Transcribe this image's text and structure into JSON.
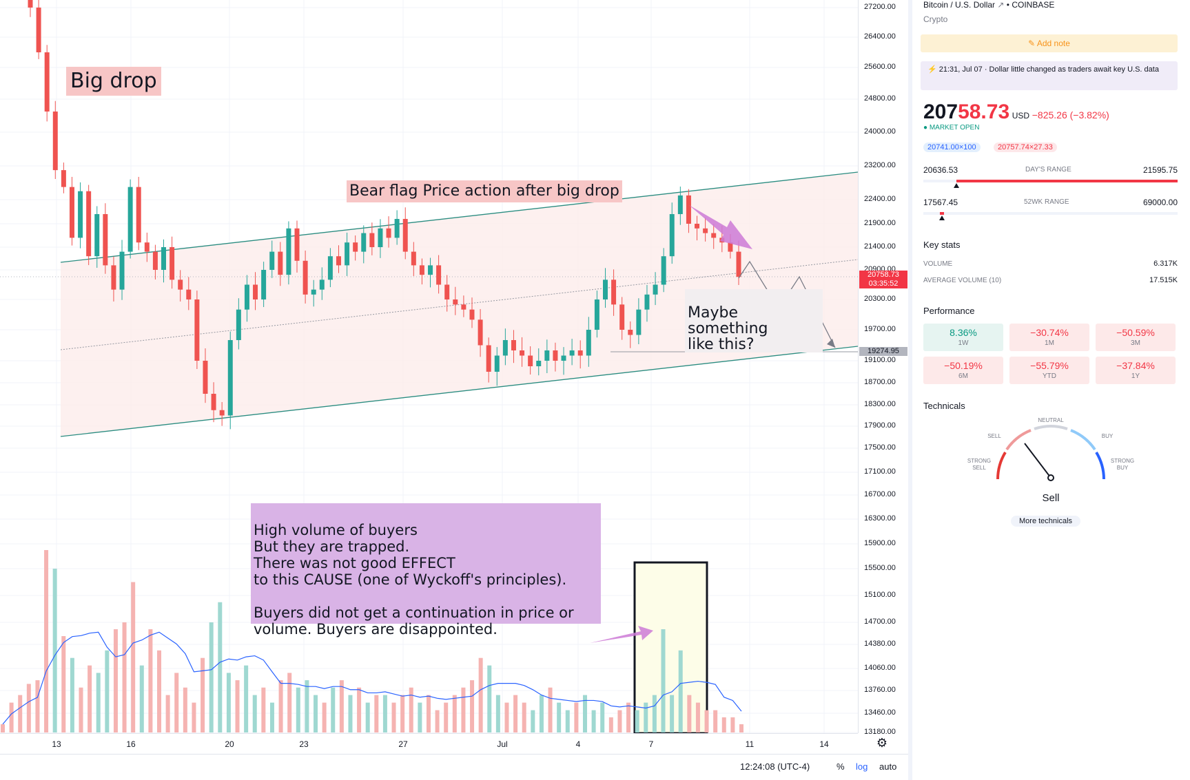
{
  "chart_data": {
    "type": "candlestick",
    "symbol": "Bitcoin / U.S. Dollar",
    "exchange": "COINBASE",
    "y_ticks": [
      27200,
      26400,
      25600,
      24800,
      24000,
      23200,
      22400,
      21900,
      21400,
      20900,
      20300,
      19700,
      19100,
      18700,
      18300,
      17900,
      17500,
      17100,
      16700,
      16300,
      15900,
      15500,
      15100,
      14700,
      14380,
      14060,
      13760,
      13460,
      13180
    ],
    "y_tick_labels": [
      "27200.00",
      "26400.00",
      "25600.00",
      "24800.00",
      "24000.00",
      "23200.00",
      "22400.00",
      "21900.00",
      "21400.00",
      "20900.00",
      "20300.00",
      "19700.00",
      "19100.00",
      "18700.00",
      "18300.00",
      "17900.00",
      "17500.00",
      "17100.00",
      "16700.00",
      "16300.00",
      "15900.00",
      "15500.00",
      "15100.00",
      "14700.00",
      "14380.00",
      "14060.00",
      "13760.00",
      "13460.00",
      "13180.00"
    ],
    "x_ticks": [
      "13",
      "16",
      "20",
      "23",
      "27",
      "Jul",
      "4",
      "7",
      "11",
      "14"
    ],
    "last_price_tag": "20758.73",
    "countdown_tag": "03:35:52",
    "level_tag": "19274.95",
    "candles_close_path": [
      27200,
      26000,
      24500,
      23100,
      22700,
      21600,
      22600,
      21200,
      22100,
      21000,
      20500,
      21300,
      22700,
      21500,
      21300,
      20900,
      21400,
      20700,
      20500,
      20300,
      19100,
      18500,
      18200,
      18100,
      19500,
      20100,
      20600,
      20300,
      20900,
      21300,
      20800,
      21800,
      21100,
      20400,
      20500,
      20700,
      21200,
      21000,
      21500,
      21300,
      21700,
      21400,
      21800,
      21600,
      22000,
      21300,
      21000,
      20800,
      21000,
      20600,
      20300,
      20200,
      20100,
      19900,
      19400,
      18900,
      19200,
      19500,
      19300,
      19200,
      19000,
      19100,
      19300,
      19100,
      19200,
      19300,
      19200,
      19700,
      20300,
      20700,
      20200,
      19700,
      19600,
      20100,
      20400,
      20600,
      21200,
      22100,
      22500,
      21900,
      21800,
      21700,
      21600,
      21500,
      21300,
      20758
    ],
    "volume_path": [
      13300,
      13600,
      13700,
      13850,
      13900,
      15800,
      15500,
      14500,
      14200,
      13800,
      14100,
      14000,
      14300,
      14600,
      14700,
      15300,
      14100,
      14600,
      14300,
      13700,
      14000,
      13800,
      13600,
      14200,
      14700,
      15000,
      14000,
      13900,
      14100,
      13700,
      13800,
      13600,
      13900,
      14000,
      13800,
      13900,
      13700,
      13600,
      13800,
      13900,
      13700,
      13800,
      13600,
      13700,
      13700,
      13600,
      13700,
      13800,
      13600,
      13700,
      13500,
      13600,
      13700,
      13800,
      13900,
      14200,
      14100,
      13700,
      13600,
      13700,
      13600,
      13500,
      13700,
      13800,
      13600,
      13500,
      13600,
      13700,
      13500,
      13600,
      13400,
      13500,
      13600,
      13500,
      13600,
      13700,
      14600,
      13700,
      14300,
      13700,
      13600,
      13500,
      13500,
      13400,
      13400,
      13300
    ]
  },
  "annotations": {
    "big_drop": "Big drop",
    "bear_flag": "Bear flag Price action after big drop",
    "maybe": "Maybe something\nlike this?",
    "volume_note": "High volume of buyers\nBut they are trapped.\nThere was not good EFFECT\nto this CAUSE (one of Wyckoff's principles).\n\nBuyers did not get a continuation in price or\nvolume. Buyers are disappointed."
  },
  "bottom_bar": {
    "time": "12:24:08 (UTC-4)",
    "percent": "%",
    "log": "log",
    "auto": "auto"
  },
  "panel": {
    "title": "Bitcoin / U.S. Dollar",
    "exchange": "• COINBASE",
    "category": "Crypto",
    "add_note": "Add note",
    "news": "21:31, Jul 07 · Dollar little changed as traders await key U.S. data",
    "price_main": "207",
    "price_highlight": "58.73",
    "currency": "USD",
    "change": "−825.26 (−3.82%)",
    "market_status": "MARKET OPEN",
    "bid": "20741.00×100",
    "ask": "20757.74×27.33",
    "day_low": "20636.53",
    "day_range_label": "DAY'S RANGE",
    "day_high": "21595.75",
    "wk_low": "17567.45",
    "wk_range_label": "52WK RANGE",
    "wk_high": "69000.00",
    "key_stats_title": "Key stats",
    "volume_label": "VOLUME",
    "volume_value": "6.317K",
    "avg_volume_label": "AVERAGE VOLUME (10)",
    "avg_volume_value": "17.515K",
    "performance_title": "Performance",
    "performance": [
      {
        "value": "8.36%",
        "period": "1W",
        "positive": true
      },
      {
        "value": "−30.74%",
        "period": "1M",
        "positive": false
      },
      {
        "value": "−50.59%",
        "period": "3M",
        "positive": false
      },
      {
        "value": "−50.19%",
        "period": "6M",
        "positive": false
      },
      {
        "value": "−55.79%",
        "period": "YTD",
        "positive": false
      },
      {
        "value": "−37.84%",
        "period": "1Y",
        "positive": false
      }
    ],
    "technicals_title": "Technicals",
    "gauge_labels": {
      "neutral": "NEUTRAL",
      "sell": "SELL",
      "buy": "BUY",
      "strong_sell": "STRONG\nSELL",
      "strong_buy": "STRONG\nBUY"
    },
    "gauge_reading": "Sell",
    "more_technicals": "More technicals"
  },
  "colors": {
    "up": "#26a69a",
    "down": "#ef5350",
    "channel": "#2a8c80",
    "flag_fill": "#fdeceb",
    "note_purple": "#d9b3e6",
    "arrow_purple": "#cc7ad6",
    "price_red": "#f23645"
  }
}
